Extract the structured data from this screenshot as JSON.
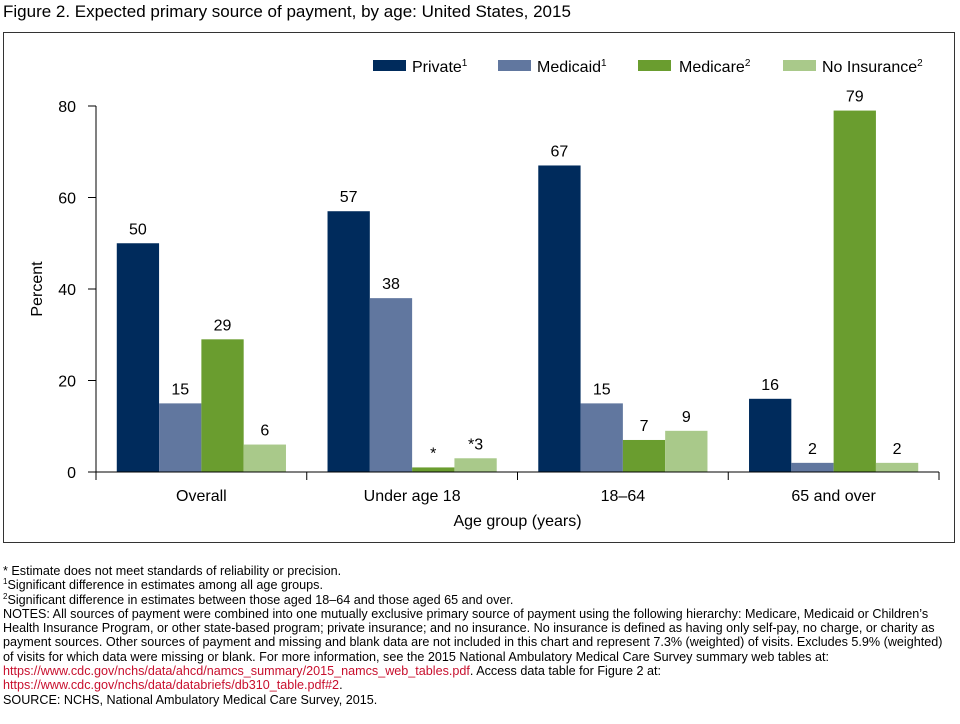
{
  "figure_title": "Figure 2. Expected primary source of payment, by age: United States, 2015",
  "chart_data": {
    "type": "bar",
    "categories": [
      "Overall",
      "Under age 18",
      "18–64",
      "65 and over"
    ],
    "series": [
      {
        "name": "Private",
        "sup": "1",
        "color": "#002b5c",
        "values": [
          50,
          57,
          67,
          16
        ],
        "labels": [
          "50",
          "57",
          "67",
          "16"
        ]
      },
      {
        "name": "Medicaid",
        "sup": "1",
        "color": "#61779f",
        "values": [
          15,
          38,
          15,
          2
        ],
        "labels": [
          "15",
          "38",
          "15",
          "2"
        ]
      },
      {
        "name": "Medicare",
        "sup": "2",
        "color": "#6a9d2f",
        "values": [
          29,
          1,
          7,
          79
        ],
        "labels": [
          "29",
          "*",
          "7",
          "79"
        ]
      },
      {
        "name": "No Insurance",
        "sup": "2",
        "color": "#a9c98a",
        "values": [
          6,
          3,
          9,
          2
        ],
        "labels": [
          "6",
          "*3",
          "9",
          "2"
        ]
      }
    ],
    "xlabel": "Age group (years)",
    "ylabel": "Percent",
    "ylim": [
      0,
      80
    ],
    "yticks": [
      0,
      20,
      40,
      60,
      80
    ],
    "legend_position": "top-right",
    "grid": false
  },
  "notes": {
    "line1": "* Estimate does not meet standards of reliability or precision.",
    "note1_sup": "1",
    "note1": "Significant difference in estimates among all age groups.",
    "note2_sup": "2",
    "note2": "Significant difference in estimates between those aged 18–64 and those aged 65 and over.",
    "notes_text": "NOTES: All sources of payment were combined into one mutually exclusive primary source of payment using the following hierarchy: Medicare, Medicaid or Children’s Health Insurance Program, or other state-based program; private insurance; and no insurance. No insurance is defined as having only self-pay, no charge, or charity as payment sources. Other sources of payment and missing and blank data are not included in this chart and represent 7.3% (weighted) of visits. Excludes 5.9% (weighted) of visits for which data were missing or blank. For more information, see the 2015 National Ambulatory Medical Care Survey summary web tables at: ",
    "link1": "https://www.cdc.gov/nchs/data/ahcd/namcs_summary/2015_namcs_web_tables.pdf",
    "mid_text": ". Access data table for Figure 2 at: ",
    "link2": "https://www.cdc.gov/nchs/data/databriefs/db310_table.pdf#2",
    "end_text": ".",
    "source": "SOURCE: NCHS, National Ambulatory Medical Care Survey, 2015."
  }
}
